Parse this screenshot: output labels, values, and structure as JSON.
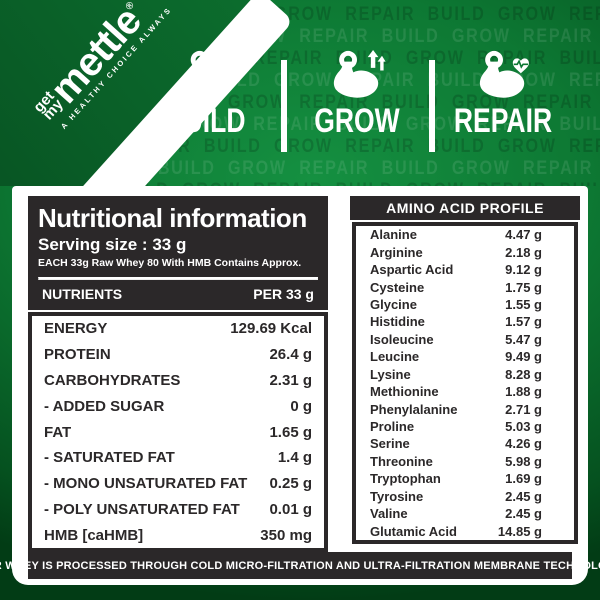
{
  "brand": {
    "get": "get",
    "my": "my",
    "main": "mettle",
    "registered": "®",
    "tagline": "A HEALTHY CHOICE ALWAYS"
  },
  "banner": {
    "watermark_words": [
      "BUILD",
      "GROW",
      "REPAIR"
    ],
    "pillars": [
      {
        "label": "BUILD"
      },
      {
        "label": "GROW"
      },
      {
        "label": "REPAIR"
      }
    ]
  },
  "nutrition": {
    "title": "Nutritional information",
    "serving": "Serving size : 33 g",
    "note": "EACH 33g Raw Whey 80 With HMB Contains Approx.",
    "col_nutrients": "NUTRIENTS",
    "col_per": "PER 33 g",
    "rows": [
      {
        "label": "ENERGY",
        "value": "129.69 Kcal"
      },
      {
        "label": "PROTEIN",
        "value": "26.4 g"
      },
      {
        "label": "CARBOHYDRATES",
        "value": "2.31 g"
      },
      {
        "label": "- ADDED SUGAR",
        "value": "0 g"
      },
      {
        "label": "FAT",
        "value": "1.65 g"
      },
      {
        "label": "- SATURATED FAT",
        "value": "1.4 g"
      },
      {
        "label": "- MONO UNSATURATED FAT",
        "value": "0.25 g"
      },
      {
        "label": "- POLY UNSATURATED FAT",
        "value": "0.01 g"
      },
      {
        "label": "HMB [caHMB]",
        "value": "350 mg"
      }
    ]
  },
  "amino": {
    "title": "AMINO ACID PROFILE",
    "rows": [
      {
        "label": "Alanine",
        "value": "4.47 g"
      },
      {
        "label": "Arginine",
        "value": "2.18 g"
      },
      {
        "label": "Aspartic Acid",
        "value": "9.12 g"
      },
      {
        "label": "Cysteine",
        "value": "1.75 g"
      },
      {
        "label": "Glycine",
        "value": "1.55 g"
      },
      {
        "label": "Histidine",
        "value": "1.57 g"
      },
      {
        "label": "Isoleucine",
        "value": "5.47 g"
      },
      {
        "label": "Leucine",
        "value": "9.49 g"
      },
      {
        "label": "Lysine",
        "value": "8.28 g"
      },
      {
        "label": "Methionine",
        "value": "1.88 g"
      },
      {
        "label": "Phenylalanine",
        "value": "2.71 g"
      },
      {
        "label": "Proline",
        "value": "5.03 g"
      },
      {
        "label": "Serine",
        "value": "4.26 g"
      },
      {
        "label": "Threonine",
        "value": "5.98 g"
      },
      {
        "label": "Tryptophan",
        "value": "1.69 g"
      },
      {
        "label": "Tyrosine",
        "value": "2.45 g"
      },
      {
        "label": "Valine",
        "value": "2.45 g"
      },
      {
        "label": "Glutamic Acid",
        "value": "14.85 g"
      }
    ]
  },
  "footer": {
    "text": "OUR WHEY IS PROCESSED THROUGH COLD MICRO-FILTRATION AND ULTRA-FILTRATION MEMBRANE TECHNOLOGY"
  },
  "colors": {
    "green_dark": "#05511f",
    "green_mid": "#0d7833",
    "green_bright": "#159041",
    "ink": "#2b2829",
    "panel": "#ffffff"
  }
}
